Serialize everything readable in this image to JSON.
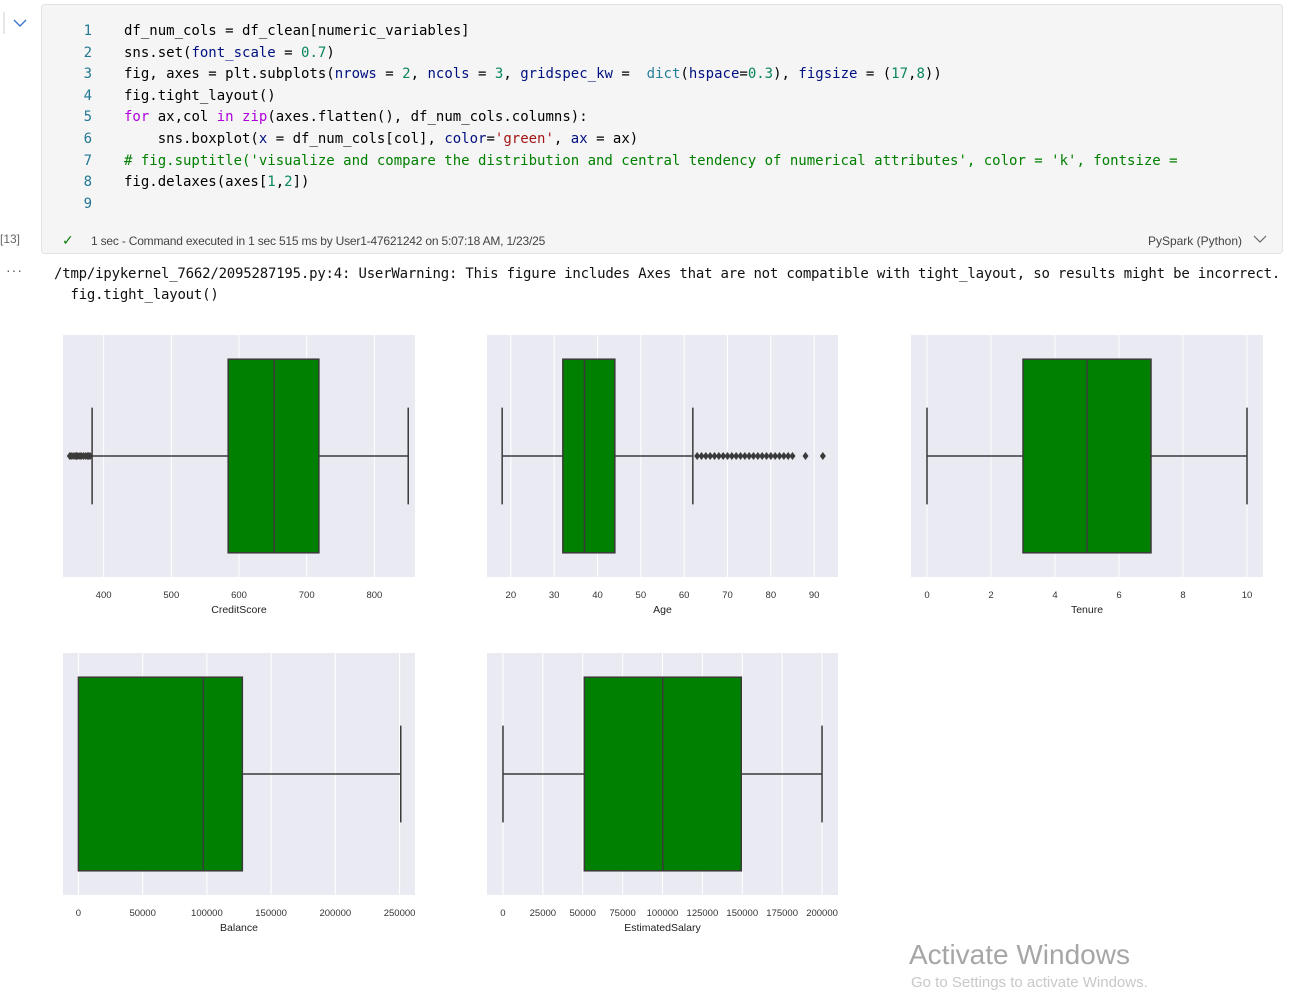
{
  "cell": {
    "execution_count": "[13]",
    "code_lines": [
      {
        "num": "1",
        "tokens": [
          {
            "t": "df_num_cols = df_clean[numeric_variables]",
            "c": ""
          }
        ]
      },
      {
        "num": "2",
        "tokens": [
          {
            "t": "sns.set(",
            "c": ""
          },
          {
            "t": "font_scale",
            "c": "prm"
          },
          {
            "t": " = ",
            "c": ""
          },
          {
            "t": "0.7",
            "c": "num"
          },
          {
            "t": ")",
            "c": ""
          }
        ]
      },
      {
        "num": "3",
        "tokens": [
          {
            "t": "fig, axes = plt.subplots(",
            "c": ""
          },
          {
            "t": "nrows",
            "c": "prm"
          },
          {
            "t": " = ",
            "c": ""
          },
          {
            "t": "2",
            "c": "num"
          },
          {
            "t": ", ",
            "c": ""
          },
          {
            "t": "ncols",
            "c": "prm"
          },
          {
            "t": " = ",
            "c": ""
          },
          {
            "t": "3",
            "c": "num"
          },
          {
            "t": ", ",
            "c": ""
          },
          {
            "t": "gridspec_kw",
            "c": "prm"
          },
          {
            "t": " =  ",
            "c": ""
          },
          {
            "t": "dict",
            "c": "bi"
          },
          {
            "t": "(",
            "c": ""
          },
          {
            "t": "hspace",
            "c": "prm"
          },
          {
            "t": "=",
            "c": ""
          },
          {
            "t": "0.3",
            "c": "num"
          },
          {
            "t": "), ",
            "c": ""
          },
          {
            "t": "figsize",
            "c": "prm"
          },
          {
            "t": " = (",
            "c": ""
          },
          {
            "t": "17",
            "c": "num"
          },
          {
            "t": ",",
            "c": ""
          },
          {
            "t": "8",
            "c": "num"
          },
          {
            "t": "))",
            "c": ""
          }
        ]
      },
      {
        "num": "4",
        "tokens": [
          {
            "t": "fig.tight_layout()",
            "c": ""
          }
        ]
      },
      {
        "num": "5",
        "tokens": [
          {
            "t": "for",
            "c": "kw"
          },
          {
            "t": " ax,col ",
            "c": ""
          },
          {
            "t": "in",
            "c": "kw"
          },
          {
            "t": " ",
            "c": ""
          },
          {
            "t": "zip",
            "c": "kw"
          },
          {
            "t": "(axes.flatten(), df_num_cols.columns):",
            "c": ""
          }
        ]
      },
      {
        "num": "6",
        "tokens": [
          {
            "t": "    sns.boxplot(",
            "c": ""
          },
          {
            "t": "x",
            "c": "prm"
          },
          {
            "t": " = df_num_cols[col], ",
            "c": ""
          },
          {
            "t": "color",
            "c": "prm"
          },
          {
            "t": "=",
            "c": ""
          },
          {
            "t": "'green'",
            "c": "str"
          },
          {
            "t": ", ",
            "c": ""
          },
          {
            "t": "ax",
            "c": "prm"
          },
          {
            "t": " = ax)",
            "c": ""
          }
        ]
      },
      {
        "num": "7",
        "tokens": [
          {
            "t": "# fig.suptitle('visualize and compare the distribution and central tendency of numerical attributes', color = 'k', fontsize =",
            "c": "cm"
          }
        ]
      },
      {
        "num": "8",
        "tokens": [
          {
            "t": "fig.delaxes(axes[",
            "c": ""
          },
          {
            "t": "1",
            "c": "num"
          },
          {
            "t": ",",
            "c": ""
          },
          {
            "t": "2",
            "c": "num"
          },
          {
            "t": "])",
            "c": ""
          }
        ]
      },
      {
        "num": "9",
        "tokens": []
      }
    ],
    "status": {
      "check": "✓",
      "text": "1 sec - Command executed in 1 sec 515 ms by User1-47621242 on 5:07:18 AM, 1/23/25",
      "kernel": "PySpark (Python)"
    }
  },
  "output": {
    "dots": "···",
    "warning": "/tmp/ipykernel_7662/2095287195.py:4: UserWarning: This figure includes Axes that are not compatible with tight_layout, so results might be incorrect.\n  fig.tight_layout()"
  },
  "chart_data": [
    {
      "type": "box",
      "xlabel": "CreditScore",
      "xlim": [
        340,
        860
      ],
      "ticks": [
        400,
        500,
        600,
        700,
        800
      ],
      "box": {
        "whisker_low": 383,
        "q1": 584,
        "median": 652,
        "q3": 718,
        "whisker_high": 850
      },
      "outliers": [
        350,
        352,
        355,
        358,
        360,
        362,
        365,
        367,
        370,
        373,
        376,
        378,
        380
      ],
      "color": "#008000"
    },
    {
      "type": "box",
      "xlabel": "Age",
      "xlim": [
        14.5,
        95.5
      ],
      "ticks": [
        20,
        30,
        40,
        50,
        60,
        70,
        80,
        90
      ],
      "box": {
        "whisker_low": 18,
        "q1": 32,
        "median": 37,
        "q3": 44,
        "whisker_high": 62
      },
      "outliers": [
        63,
        64,
        65,
        66,
        67,
        68,
        69,
        70,
        71,
        72,
        73,
        74,
        75,
        76,
        77,
        78,
        79,
        80,
        81,
        82,
        83,
        84,
        85,
        88,
        92
      ],
      "color": "#008000"
    },
    {
      "type": "box",
      "xlabel": "Tenure",
      "xlim": [
        -0.5,
        10.5
      ],
      "ticks": [
        0,
        2,
        4,
        6,
        8,
        10
      ],
      "box": {
        "whisker_low": 0,
        "q1": 3,
        "median": 5,
        "q3": 7,
        "whisker_high": 10
      },
      "outliers": [],
      "color": "#008000"
    },
    {
      "type": "box",
      "xlabel": "Balance",
      "xlim": [
        -12000,
        262000
      ],
      "ticks": [
        0,
        50000,
        100000,
        150000,
        200000,
        250000
      ],
      "box": {
        "whisker_low": 0,
        "q1": 0,
        "median": 97200,
        "q3": 127600,
        "whisker_high": 250900
      },
      "outliers": [],
      "color": "#008000"
    },
    {
      "type": "box",
      "xlabel": "EstimatedSalary",
      "xlim": [
        -10000,
        210000
      ],
      "ticks": [
        0,
        25000,
        50000,
        75000,
        100000,
        125000,
        150000,
        175000,
        200000
      ],
      "box": {
        "whisker_low": 11,
        "q1": 51000,
        "median": 100200,
        "q3": 149400,
        "whisker_high": 199990
      },
      "outliers": [],
      "color": "#008000"
    }
  ],
  "watermark": {
    "title": "Activate Windows",
    "subtitle": "Go to Settings to activate Windows."
  }
}
